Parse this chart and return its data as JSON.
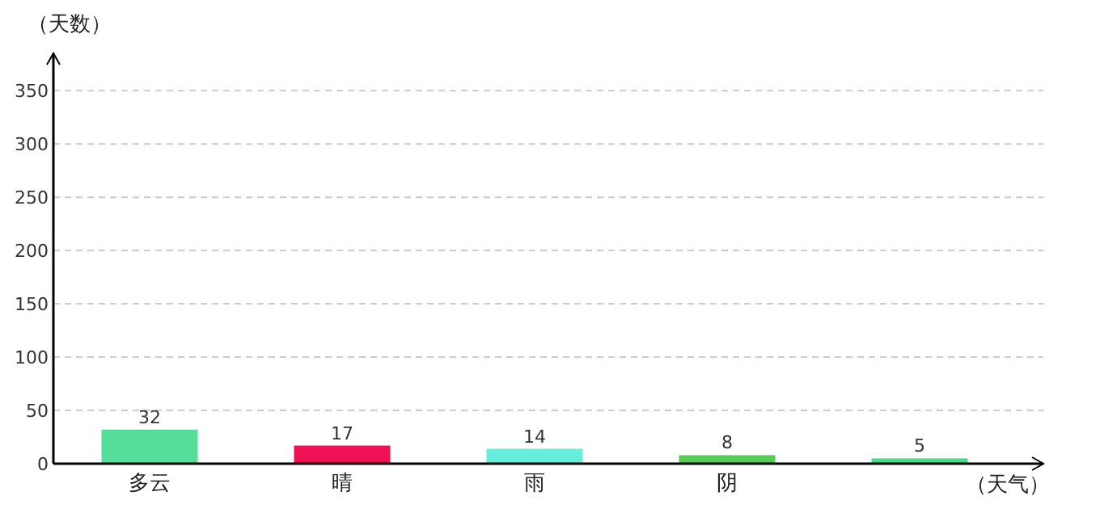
{
  "chart_data": {
    "type": "bar",
    "ylabel": "（天数）",
    "xlabel": "（天气）",
    "categories": [
      "多云",
      "晴",
      "雨",
      "阴",
      null
    ],
    "values": [
      32,
      17,
      14,
      8,
      5
    ],
    "colors": [
      "#55dd99",
      "#ee1155",
      "#66eedd",
      "#55cc55",
      "#44dd88"
    ],
    "ylim": [
      0,
      385
    ],
    "yticks": [
      0,
      50,
      100,
      150,
      200,
      250,
      300,
      350
    ],
    "grid": "y",
    "data_labels": true
  }
}
